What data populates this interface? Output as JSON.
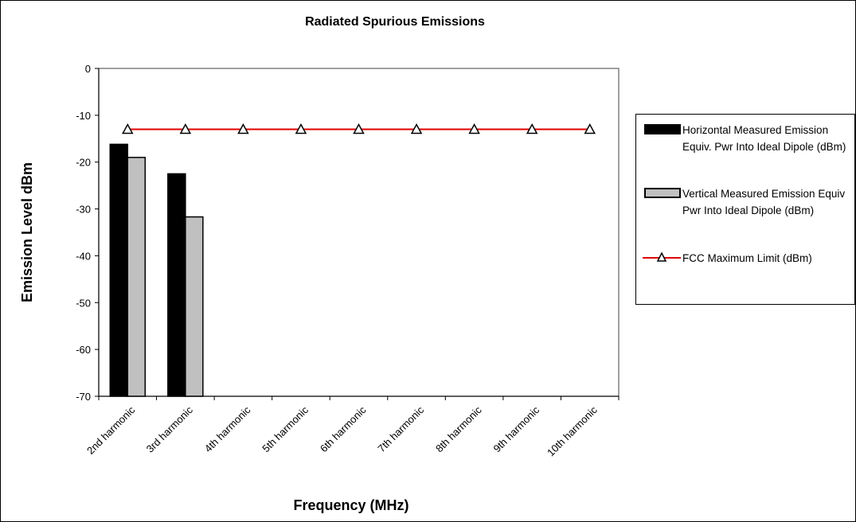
{
  "chart_data": {
    "type": "bar",
    "title": "Radiated Spurious Emissions",
    "xlabel": "Frequency (MHz)",
    "ylabel": "Emission Level dBm",
    "ylim": [
      -70,
      0
    ],
    "yticks": [
      0,
      -10,
      -20,
      -30,
      -40,
      -50,
      -60,
      -70
    ],
    "categories": [
      "2nd harmonic",
      "3rd harmonic",
      "4th harmonic",
      "5th harmonic",
      "6th harmonic",
      "7th harmonic",
      "8th harmonic",
      "9th harmonic",
      "10th harmonic"
    ],
    "series": [
      {
        "name": "Horizontal Measured Emission Equiv. Pwr Into Ideal Dipole (dBm)",
        "kind": "bar",
        "color": "#000000",
        "values": [
          -16.2,
          -22.5,
          null,
          null,
          null,
          null,
          null,
          null,
          null
        ]
      },
      {
        "name": "Vertical Measured Emission Equiv Pwr Into Ideal Dipole (dBm)",
        "kind": "bar",
        "color": "#c0c0c0",
        "values": [
          -19.0,
          -31.7,
          null,
          null,
          null,
          null,
          null,
          null,
          null
        ]
      },
      {
        "name": "FCC Maximum Limit (dBm)",
        "kind": "line",
        "color": "#e00000",
        "marker": "triangle",
        "values": [
          -13,
          -13,
          -13,
          -13,
          -13,
          -13,
          -13,
          -13,
          -13
        ]
      }
    ],
    "grid": false,
    "legend_position": "right"
  }
}
